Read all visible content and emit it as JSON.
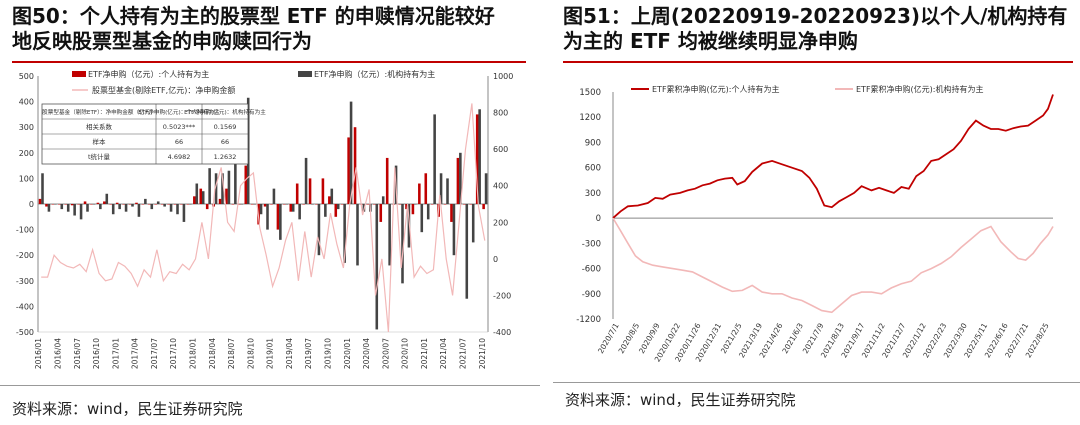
{
  "fig50": {
    "title_line1": "图50：个人持有为主的股票型 ETF 的申赎情况能较好",
    "title_line2": "地反映股票型基金的申购赎回行为",
    "source": "资料来源：wind，民生证券研究院"
  },
  "fig51": {
    "title_line1": "图51：上周(20220919-20220923)以个人/机构持有",
    "title_line2": "为主的 ETF 均被继续明显净申购",
    "source": "资料来源：wind，民生证券研究院"
  },
  "colors": {
    "title_rule": "#c00000",
    "red": "#c00000",
    "dark": "#444444",
    "pink": "#f2b8b8"
  },
  "chart_data": [
    {
      "type": "bar",
      "title": "",
      "series": [
        {
          "name": "ETF净申购（亿元）:个人持有为主",
          "kind": "bar",
          "axis": "left",
          "color": "#c00000",
          "values": [
            20,
            -10,
            0,
            0,
            0,
            -5,
            0,
            10,
            0,
            5,
            10,
            0,
            5,
            0,
            0,
            5,
            0,
            0,
            0,
            0,
            0,
            0,
            0,
            0,
            30,
            60,
            -20,
            -10,
            20,
            60,
            0,
            0,
            150,
            0,
            -80,
            -10,
            0,
            -100,
            0,
            -30,
            80,
            0,
            100,
            0,
            100,
            30,
            -50,
            0,
            260,
            300,
            0,
            0,
            0,
            -70,
            180,
            0,
            0,
            -20,
            -40,
            80,
            120,
            0,
            -50,
            0,
            -70,
            180,
            0,
            0,
            350,
            -20
          ]
        },
        {
          "name": "ETF净申购（亿元）:机构持有为主",
          "kind": "bar",
          "axis": "left",
          "color": "#444444",
          "values": [
            120,
            -30,
            0,
            -20,
            -30,
            -45,
            -60,
            -30,
            0,
            -20,
            40,
            -40,
            -20,
            -30,
            -10,
            -50,
            20,
            -20,
            10,
            -10,
            -30,
            -40,
            -70,
            0,
            80,
            50,
            140,
            120,
            120,
            130,
            210,
            0,
            415,
            0,
            -40,
            -100,
            60,
            -140,
            0,
            -30,
            -60,
            180,
            0,
            -200,
            -50,
            60,
            -20,
            -230,
            400,
            -240,
            -30,
            -30,
            -490,
            30,
            -240,
            150,
            -310,
            -170,
            0,
            -110,
            -60,
            350,
            120,
            100,
            -200,
            200,
            -370,
            -150,
            370,
            120
          ]
        },
        {
          "name": "股票型基金(剔除ETF,亿元)：净申购金额",
          "kind": "line",
          "axis": "right",
          "color": "#f2b8b8",
          "values": [
            -100,
            -100,
            20,
            -20,
            -40,
            -50,
            -30,
            -70,
            50,
            -80,
            -120,
            -110,
            -20,
            -40,
            -80,
            -150,
            -60,
            -100,
            50,
            -120,
            -70,
            -80,
            -30,
            -60,
            0,
            200,
            0,
            380,
            500,
            200,
            150,
            400,
            440,
            470,
            170,
            20,
            -150,
            -50,
            100,
            200,
            -120,
            150,
            -100,
            120,
            0,
            250,
            80,
            -50,
            300,
            500,
            240,
            380,
            -200,
            0,
            -400,
            500,
            -50,
            300,
            -100,
            -40,
            -80,
            -60,
            350,
            0,
            -200,
            200,
            600,
            850,
            290,
            100
          ]
        }
      ],
      "x_ticks": [
        "2016/01",
        "2016/04",
        "2016/07",
        "2016/10",
        "2017/01",
        "2017/04",
        "2017/07",
        "2017/10",
        "2018/01",
        "2018/04",
        "2018/07",
        "2018/10",
        "2019/01",
        "2019/04",
        "2019/07",
        "2019/10",
        "2020/01",
        "2020/04",
        "2020/07",
        "2020/10",
        "2021/01",
        "2021/04",
        "2021/07",
        "2021/10"
      ],
      "y_left": {
        "ticks": [
          -500,
          -400,
          -300,
          -200,
          -100,
          0,
          100,
          200,
          300,
          400,
          500
        ],
        "lim": [
          -500,
          500
        ]
      },
      "y_right": {
        "ticks": [
          -400,
          -200,
          0,
          200,
          400,
          600,
          800,
          1000
        ],
        "lim": [
          -400,
          1000
        ]
      },
      "legend": "top",
      "table": {
        "header": [
          "股票型基金（剔除ETF）：净申购金额（亿元）",
          "ETF净申购(亿元)：个人持有为主",
          "ETF净申购(亿元)：机构持有为主"
        ],
        "rows": [
          [
            "相关系数",
            "0.5023***",
            "0.1569"
          ],
          [
            "样本",
            "66",
            "66"
          ],
          [
            "t统计量",
            "4.6982",
            "1.2632"
          ]
        ]
      }
    },
    {
      "type": "line",
      "title": "",
      "series": [
        {
          "name": "ETF累积净申购(亿元):个人持有为主",
          "color": "#c00000",
          "points": [
            [
              0,
              0
            ],
            [
              3,
              80
            ],
            [
              6,
              140
            ],
            [
              10,
              150
            ],
            [
              14,
              180
            ],
            [
              17,
              240
            ],
            [
              20,
              230
            ],
            [
              23,
              280
            ],
            [
              27,
              300
            ],
            [
              30,
              330
            ],
            [
              33,
              350
            ],
            [
              36,
              390
            ],
            [
              39,
              410
            ],
            [
              42,
              450
            ],
            [
              45,
              470
            ],
            [
              48,
              480
            ],
            [
              50,
              400
            ],
            [
              53,
              440
            ],
            [
              56,
              550
            ],
            [
              60,
              650
            ],
            [
              64,
              680
            ],
            [
              68,
              640
            ],
            [
              72,
              600
            ],
            [
              76,
              560
            ],
            [
              79,
              480
            ],
            [
              82,
              350
            ],
            [
              85,
              150
            ],
            [
              88,
              130
            ],
            [
              91,
              200
            ],
            [
              94,
              250
            ],
            [
              97,
              300
            ],
            [
              100,
              380
            ],
            [
              104,
              330
            ],
            [
              107,
              360
            ],
            [
              110,
              330
            ],
            [
              113,
              300
            ],
            [
              116,
              370
            ],
            [
              119,
              350
            ],
            [
              122,
              500
            ],
            [
              125,
              560
            ],
            [
              128,
              680
            ],
            [
              131,
              700
            ],
            [
              134,
              760
            ],
            [
              137,
              820
            ],
            [
              140,
              920
            ],
            [
              143,
              1060
            ],
            [
              146,
              1160
            ],
            [
              149,
              1100
            ],
            [
              152,
              1060
            ],
            [
              155,
              1060
            ],
            [
              158,
              1040
            ],
            [
              161,
              1070
            ],
            [
              164,
              1090
            ],
            [
              167,
              1100
            ],
            [
              170,
              1160
            ],
            [
              173,
              1220
            ],
            [
              175,
              1300
            ],
            [
              177,
              1470
            ]
          ]
        },
        {
          "name": "ETF累积净申购(亿元):机构持有为主",
          "color": "#f2b8b8",
          "points": [
            [
              0,
              0
            ],
            [
              3,
              -150
            ],
            [
              6,
              -300
            ],
            [
              9,
              -450
            ],
            [
              12,
              -520
            ],
            [
              16,
              -560
            ],
            [
              20,
              -580
            ],
            [
              24,
              -600
            ],
            [
              28,
              -620
            ],
            [
              32,
              -640
            ],
            [
              36,
              -700
            ],
            [
              40,
              -760
            ],
            [
              44,
              -820
            ],
            [
              48,
              -870
            ],
            [
              52,
              -860
            ],
            [
              56,
              -800
            ],
            [
              60,
              -880
            ],
            [
              64,
              -900
            ],
            [
              68,
              -900
            ],
            [
              72,
              -950
            ],
            [
              76,
              -980
            ],
            [
              80,
              -1040
            ],
            [
              84,
              -1100
            ],
            [
              88,
              -1120
            ],
            [
              92,
              -1020
            ],
            [
              96,
              -920
            ],
            [
              100,
              -880
            ],
            [
              104,
              -880
            ],
            [
              108,
              -900
            ],
            [
              112,
              -830
            ],
            [
              116,
              -780
            ],
            [
              120,
              -750
            ],
            [
              124,
              -650
            ],
            [
              128,
              -600
            ],
            [
              132,
              -540
            ],
            [
              136,
              -460
            ],
            [
              140,
              -350
            ],
            [
              144,
              -250
            ],
            [
              148,
              -150
            ],
            [
              152,
              -100
            ],
            [
              156,
              -280
            ],
            [
              160,
              -400
            ],
            [
              163,
              -480
            ],
            [
              166,
              -500
            ],
            [
              169,
              -420
            ],
            [
              172,
              -300
            ],
            [
              175,
              -200
            ],
            [
              177,
              -100
            ]
          ]
        }
      ],
      "x_ticks": [
        "2020/7/1",
        "2020/8/5",
        "2020/9/9",
        "2020/10/22",
        "2020/11/26",
        "2020/12/31",
        "2021/2/5",
        "2021/3/19",
        "2021/4/26",
        "2021/6/3",
        "2021/7/9",
        "2021/8/13",
        "2021/9/17",
        "2021/11/2",
        "2021/12/7",
        "2022/1/12",
        "2022/2/23",
        "2022/3/30",
        "2022/5/11",
        "2022/6/16",
        "2022/7/21",
        "2022/8/25"
      ],
      "y_ticks": [
        -1200,
        -900,
        -600,
        -300,
        0,
        300,
        600,
        900,
        1200,
        1500
      ],
      "ylim": [
        -1200,
        1500
      ],
      "legend": "top"
    }
  ]
}
